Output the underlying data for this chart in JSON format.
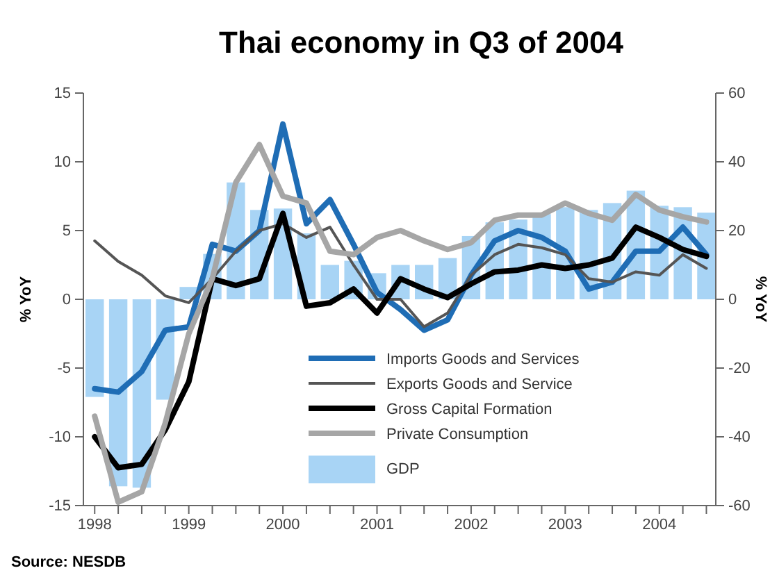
{
  "chart_data": {
    "type": "bar",
    "title": "Thai economy in Q3 of 2004",
    "ylabel": "% YoY",
    "y2label": "% YoY",
    "annotations": [
      "Source: NESDB"
    ],
    "x": [
      1998,
      1998.25,
      1998.5,
      1998.75,
      1999,
      1999.25,
      1999.5,
      1999.75,
      2000,
      2000.25,
      2000.5,
      2000.75,
      2001,
      2001.25,
      2001.5,
      2001.75,
      2002,
      2002.25,
      2002.5,
      2002.75,
      2003,
      2003.25,
      2003.5,
      2003.75,
      2004,
      2004.25,
      2004.5
    ],
    "xlim": [
      1997.88,
      2004.6
    ],
    "xticks": [
      1998,
      {
        "value": 1998.25,
        "label": null
      },
      {
        "value": 1998.5,
        "label": null
      },
      {
        "value": 1998.75,
        "label": null
      },
      1999,
      {
        "value": 1999.25,
        "label": null
      },
      {
        "value": 1999.5,
        "label": null
      },
      {
        "value": 1999.75,
        "label": null
      },
      2000,
      {
        "value": 2000.25,
        "label": null
      },
      {
        "value": 2000.5,
        "label": null
      },
      {
        "value": 2000.75,
        "label": null
      },
      2001,
      {
        "value": 2001.25,
        "label": null
      },
      {
        "value": 2001.5,
        "label": null
      },
      {
        "value": 2001.75,
        "label": null
      },
      2002,
      {
        "value": 2002.25,
        "label": null
      },
      {
        "value": 2002.5,
        "label": null
      },
      {
        "value": 2002.75,
        "label": null
      },
      2003,
      {
        "value": 2003.25,
        "label": null
      },
      {
        "value": 2003.5,
        "label": null
      },
      {
        "value": 2003.75,
        "label": null
      },
      2004,
      {
        "value": 2004.25,
        "label": null
      },
      {
        "value": 2004.5,
        "label": null
      }
    ],
    "ylim": [
      -15,
      15
    ],
    "yticks": [
      -15,
      -10,
      -5,
      0,
      5,
      10,
      15
    ],
    "y2lim": [
      -60,
      60
    ],
    "y2ticks": [
      -60,
      -40,
      -20,
      0,
      20,
      40,
      60
    ],
    "legend": "bottom",
    "grid": false,
    "series": [
      {
        "name": "Imports Goods and Services",
        "type": "line",
        "axis": "y2",
        "color": "#1f6db5",
        "values": [
          -26,
          -27,
          -21,
          -9,
          -8,
          16,
          14,
          20,
          51,
          22,
          29,
          16,
          2,
          -3,
          -9,
          -6,
          7,
          17,
          20,
          18,
          14,
          3,
          5,
          14,
          14,
          21,
          13
        ]
      },
      {
        "name": "Exports Goods and Service",
        "type": "line",
        "axis": "y2",
        "color": "#555555",
        "values": [
          17,
          11,
          7,
          1,
          -1,
          6,
          14,
          20,
          22,
          18,
          21,
          10,
          0,
          0,
          -8,
          -4,
          7,
          13,
          16,
          15,
          13,
          6,
          5,
          8,
          7,
          13,
          9
        ]
      },
      {
        "name": "Gross Capital Formation",
        "type": "line",
        "axis": "y2",
        "color": "#000000",
        "values": [
          -40,
          -49,
          -48,
          -38,
          -24,
          6,
          4,
          6,
          25,
          -2,
          -1,
          3,
          -4,
          6,
          3,
          0.5,
          4.5,
          8,
          8.5,
          10,
          9,
          10,
          12,
          21,
          18,
          14.5,
          12.5
        ]
      },
      {
        "name": "Private Consumption",
        "type": "line",
        "axis": "y2",
        "color": "#a6a6a6",
        "values": [
          -34,
          -59,
          -56,
          -36,
          -10,
          6,
          34,
          45,
          30,
          28,
          14,
          13,
          18,
          20,
          17,
          14.5,
          16.5,
          23,
          24.5,
          24.5,
          28,
          25,
          23,
          30.5,
          26,
          24,
          22.5
        ]
      },
      {
        "name": "GDP",
        "type": "bar",
        "color": "#a8d4f5",
        "values": [
          -7.1,
          -13.6,
          -13.7,
          -7.3,
          0.9,
          3.3,
          8.5,
          6.5,
          6.6,
          4.8,
          2.5,
          2.8,
          1.9,
          2.5,
          2.5,
          3.0,
          4.6,
          5.6,
          5.8,
          6.2,
          6.7,
          6.5,
          7.0,
          7.9,
          6.8,
          6.7,
          6.3
        ]
      }
    ]
  }
}
